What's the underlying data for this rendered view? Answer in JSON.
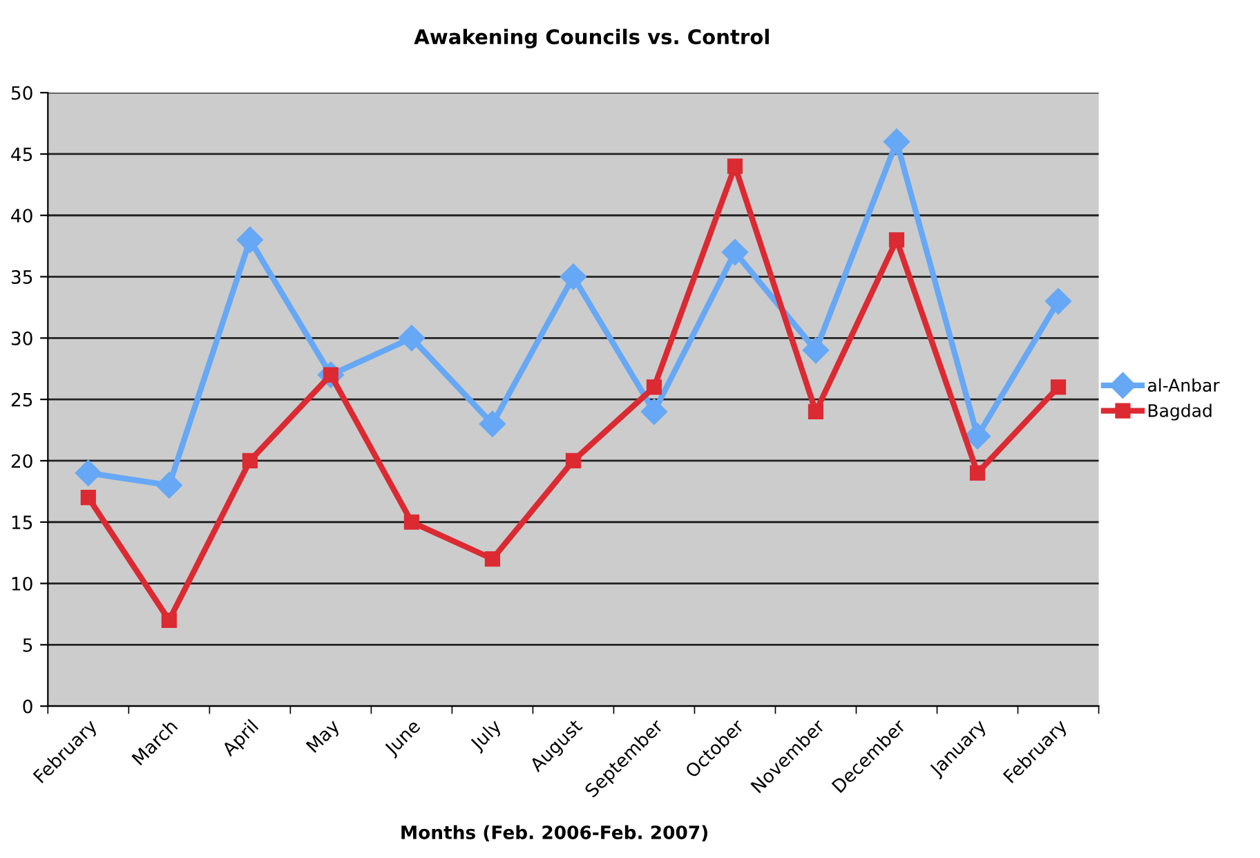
{
  "chart_data": {
    "type": "line",
    "title": "Awakening Councils vs. Control",
    "xlabel": "Months (Feb. 2006-Feb. 2007)",
    "categories": [
      "February",
      "March",
      "April",
      "May",
      "June",
      "July",
      "August",
      "September",
      "October",
      "November",
      "December",
      "January",
      "February"
    ],
    "series": [
      {
        "name": "al-Anbar",
        "color": "#66a8f5",
        "marker": "diamond",
        "values": [
          19,
          18,
          38,
          27,
          30,
          23,
          35,
          24,
          37,
          29,
          46,
          22,
          33
        ]
      },
      {
        "name": "Bagdad",
        "color": "#dc2a32",
        "marker": "square",
        "values": [
          17,
          7,
          20,
          27,
          15,
          12,
          20,
          26,
          44,
          24,
          38,
          19,
          26
        ]
      }
    ],
    "ylim": [
      0,
      50
    ],
    "yticks": [
      0,
      5,
      10,
      15,
      20,
      25,
      30,
      35,
      40,
      45,
      50
    ],
    "grid": "y",
    "legend": "right",
    "line_style": "solid"
  }
}
